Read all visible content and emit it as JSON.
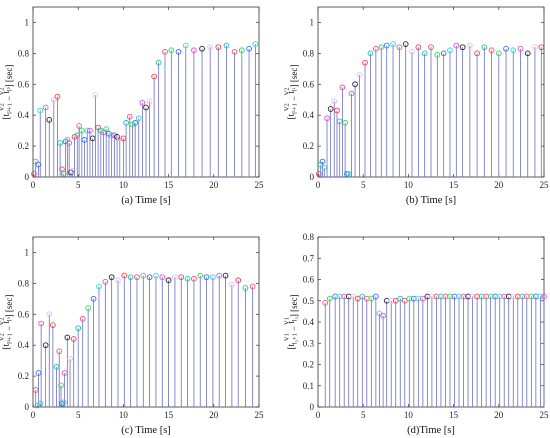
{
  "chart_data": [
    {
      "id": "a",
      "type": "stem",
      "xlabel": "(a) Time [s]",
      "ylabel": {
        "pre": "[",
        "t1": "t",
        "sup1": "V2",
        "sub1": "l²+1",
        "mid": " − ",
        "t2": "t",
        "sup2": "V2",
        "sub2": "l²",
        "post": "] [sec]"
      },
      "xlim": [
        0,
        25
      ],
      "ylim": [
        0,
        1.1
      ],
      "xticks": [
        0,
        5,
        10,
        15,
        20,
        25
      ],
      "yticks": [
        0,
        0.2,
        0.4,
        0.6,
        0.8,
        1
      ],
      "points": [
        [
          0.1,
          0.02
        ],
        [
          0.3,
          0.1
        ],
        [
          0.6,
          0.08
        ],
        [
          0.8,
          0.43
        ],
        [
          1.4,
          0.45
        ],
        [
          1.8,
          0.37
        ],
        [
          2.3,
          0.5
        ],
        [
          2.7,
          0.52
        ],
        [
          3.0,
          0.22
        ],
        [
          3.2,
          0.05
        ],
        [
          3.4,
          0.02
        ],
        [
          3.6,
          0.23
        ],
        [
          3.8,
          0.24
        ],
        [
          4.0,
          0.22
        ],
        [
          4.2,
          0.03
        ],
        [
          4.4,
          0.04
        ],
        [
          4.6,
          0.26
        ],
        [
          4.9,
          0.27
        ],
        [
          5.1,
          0.33
        ],
        [
          5.4,
          0.3
        ],
        [
          5.7,
          0.24
        ],
        [
          6.0,
          0.3
        ],
        [
          6.3,
          0.3
        ],
        [
          6.6,
          0.25
        ],
        [
          6.9,
          0.53
        ],
        [
          7.2,
          0.32
        ],
        [
          7.5,
          0.3
        ],
        [
          7.8,
          0.29
        ],
        [
          8.1,
          0.31
        ],
        [
          8.4,
          0.28
        ],
        [
          8.7,
          0.27
        ],
        [
          9.0,
          0.27
        ],
        [
          9.3,
          0.26
        ],
        [
          9.6,
          0.25
        ],
        [
          10.0,
          0.25
        ],
        [
          10.3,
          0.35
        ],
        [
          10.7,
          0.39
        ],
        [
          11.0,
          0.34
        ],
        [
          11.3,
          0.35
        ],
        [
          11.7,
          0.38
        ],
        [
          12.1,
          0.48
        ],
        [
          12.5,
          0.45
        ],
        [
          12.9,
          0.49
        ],
        [
          13.4,
          0.65
        ],
        [
          13.9,
          0.74
        ],
        [
          14.6,
          0.81
        ],
        [
          15.3,
          0.82
        ],
        [
          16.1,
          0.81
        ],
        [
          16.9,
          0.85
        ],
        [
          17.8,
          0.82
        ],
        [
          18.7,
          0.83
        ],
        [
          19.6,
          0.84
        ],
        [
          20.5,
          0.84
        ],
        [
          21.4,
          0.85
        ],
        [
          22.3,
          0.81
        ],
        [
          23.1,
          0.82
        ],
        [
          23.9,
          0.83
        ],
        [
          24.6,
          0.86
        ]
      ]
    },
    {
      "id": "b",
      "type": "stem",
      "xlabel": "(b) Time [s]",
      "ylabel": {
        "pre": "[",
        "t1": "t",
        "sup1": "V2",
        "sub1": "l¹+1",
        "mid": " − ",
        "t2": "t",
        "sup2": "V2",
        "sub2": "l¹",
        "post": "] [sec]"
      },
      "xlim": [
        0,
        25
      ],
      "ylim": [
        0,
        1.1
      ],
      "xticks": [
        0,
        5,
        10,
        15,
        20,
        25
      ],
      "yticks": [
        0,
        0.2,
        0.4,
        0.6,
        0.8,
        1
      ],
      "points": [
        [
          0.1,
          0.02
        ],
        [
          0.3,
          0.08
        ],
        [
          0.5,
          0.1
        ],
        [
          0.7,
          0.06
        ],
        [
          1.0,
          0.38
        ],
        [
          1.4,
          0.44
        ],
        [
          1.8,
          0.49
        ],
        [
          2.1,
          0.43
        ],
        [
          2.4,
          0.36
        ],
        [
          2.7,
          0.58
        ],
        [
          3.0,
          0.35
        ],
        [
          3.2,
          0.02
        ],
        [
          3.4,
          0.02
        ],
        [
          3.7,
          0.54
        ],
        [
          4.1,
          0.6
        ],
        [
          4.6,
          0.66
        ],
        [
          5.2,
          0.74
        ],
        [
          5.8,
          0.8
        ],
        [
          6.4,
          0.83
        ],
        [
          7.0,
          0.84
        ],
        [
          7.6,
          0.85
        ],
        [
          8.3,
          0.86
        ],
        [
          9.0,
          0.84
        ],
        [
          9.7,
          0.86
        ],
        [
          10.4,
          0.81
        ],
        [
          11.1,
          0.84
        ],
        [
          11.8,
          0.8
        ],
        [
          12.5,
          0.84
        ],
        [
          13.2,
          0.79
        ],
        [
          13.9,
          0.8
        ],
        [
          14.6,
          0.82
        ],
        [
          15.3,
          0.85
        ],
        [
          16.0,
          0.84
        ],
        [
          16.8,
          0.85
        ],
        [
          17.6,
          0.8
        ],
        [
          18.4,
          0.84
        ],
        [
          19.2,
          0.82
        ],
        [
          20.0,
          0.8
        ],
        [
          20.8,
          0.83
        ],
        [
          21.6,
          0.82
        ],
        [
          22.4,
          0.83
        ],
        [
          23.2,
          0.8
        ],
        [
          24.0,
          0.84
        ],
        [
          24.7,
          0.84
        ]
      ]
    },
    {
      "id": "c",
      "type": "stem",
      "xlabel": "(c) Time [s]",
      "ylabel": {
        "pre": "[",
        "t1": "t",
        "sup1": "V2",
        "sub1": "l³+1",
        "mid": " − ",
        "t2": "t",
        "sup2": "V2",
        "sub2": "l³",
        "post": "] [sec]"
      },
      "xlim": [
        0,
        25
      ],
      "ylim": [
        0,
        1.1
      ],
      "xticks": [
        0,
        5,
        10,
        15,
        20,
        25
      ],
      "yticks": [
        0,
        0.2,
        0.4,
        0.6,
        0.8,
        1
      ],
      "points": [
        [
          0.3,
          0.11
        ],
        [
          0.5,
          0.01
        ],
        [
          0.6,
          0.22
        ],
        [
          0.8,
          0.02
        ],
        [
          0.9,
          0.54
        ],
        [
          1.4,
          0.4
        ],
        [
          1.8,
          0.6
        ],
        [
          2.2,
          0.53
        ],
        [
          2.6,
          0.26
        ],
        [
          2.9,
          0.36
        ],
        [
          3.1,
          0.14
        ],
        [
          3.2,
          0.02
        ],
        [
          3.4,
          0.03
        ],
        [
          3.5,
          0.22
        ],
        [
          3.8,
          0.45
        ],
        [
          4.1,
          0.31
        ],
        [
          4.5,
          0.44
        ],
        [
          5.0,
          0.51
        ],
        [
          5.5,
          0.57
        ],
        [
          6.1,
          0.64
        ],
        [
          6.7,
          0.7
        ],
        [
          7.3,
          0.78
        ],
        [
          8.0,
          0.81
        ],
        [
          8.7,
          0.84
        ],
        [
          9.4,
          0.82
        ],
        [
          10.1,
          0.85
        ],
        [
          10.8,
          0.84
        ],
        [
          11.5,
          0.84
        ],
        [
          12.2,
          0.85
        ],
        [
          12.9,
          0.84
        ],
        [
          13.6,
          0.85
        ],
        [
          14.3,
          0.84
        ],
        [
          15.0,
          0.82
        ],
        [
          15.7,
          0.84
        ],
        [
          16.4,
          0.84
        ],
        [
          17.1,
          0.83
        ],
        [
          17.8,
          0.83
        ],
        [
          18.5,
          0.85
        ],
        [
          19.2,
          0.84
        ],
        [
          19.9,
          0.84
        ],
        [
          20.6,
          0.85
        ],
        [
          21.3,
          0.85
        ],
        [
          22.0,
          0.79
        ],
        [
          22.7,
          0.82
        ],
        [
          23.5,
          0.77
        ],
        [
          24.3,
          0.78
        ]
      ]
    },
    {
      "id": "d",
      "type": "stem",
      "xlabel": "(d)Time [s]",
      "ylabel": {
        "pre": "[",
        "t1": "t",
        "sup1": "V1",
        "sub1": "l₂+1",
        "mid": " − ",
        "t2": "t",
        "sup2": "V1",
        "sub2": "l₂",
        "post": "] [sec]"
      },
      "xlim": [
        0,
        25
      ],
      "ylim": [
        0,
        0.8
      ],
      "xticks": [
        0,
        5,
        10,
        15,
        20,
        25
      ],
      "yticks": [
        0,
        0.1,
        0.2,
        0.3,
        0.4,
        0.5,
        0.6,
        0.7,
        0.8
      ],
      "points": [
        [
          0.8,
          0.49
        ],
        [
          1.3,
          0.51
        ],
        [
          1.9,
          0.52
        ],
        [
          2.4,
          0.52
        ],
        [
          2.9,
          0.52
        ],
        [
          3.4,
          0.52
        ],
        [
          3.9,
          0.52
        ],
        [
          4.4,
          0.51
        ],
        [
          4.9,
          0.52
        ],
        [
          5.4,
          0.51
        ],
        [
          5.9,
          0.51
        ],
        [
          6.4,
          0.52
        ],
        [
          6.8,
          0.44
        ],
        [
          7.2,
          0.43
        ],
        [
          7.6,
          0.5
        ],
        [
          8.1,
          0.5
        ],
        [
          8.6,
          0.5
        ],
        [
          9.1,
          0.51
        ],
        [
          9.6,
          0.5
        ],
        [
          10.1,
          0.51
        ],
        [
          10.6,
          0.51
        ],
        [
          11.1,
          0.51
        ],
        [
          11.6,
          0.51
        ],
        [
          12.1,
          0.52
        ],
        [
          12.6,
          0.52
        ],
        [
          13.1,
          0.52
        ],
        [
          13.6,
          0.52
        ],
        [
          14.1,
          0.52
        ],
        [
          14.6,
          0.52
        ],
        [
          15.1,
          0.52
        ],
        [
          15.6,
          0.52
        ],
        [
          16.1,
          0.52
        ],
        [
          16.6,
          0.52
        ],
        [
          17.1,
          0.52
        ],
        [
          17.6,
          0.52
        ],
        [
          18.1,
          0.52
        ],
        [
          18.6,
          0.52
        ],
        [
          19.1,
          0.52
        ],
        [
          19.6,
          0.52
        ],
        [
          20.1,
          0.52
        ],
        [
          20.6,
          0.52
        ],
        [
          21.1,
          0.52
        ],
        [
          21.6,
          0.52
        ],
        [
          22.1,
          0.52
        ],
        [
          22.6,
          0.52
        ],
        [
          23.1,
          0.52
        ],
        [
          23.6,
          0.52
        ],
        [
          24.1,
          0.52
        ],
        [
          24.6,
          0.52
        ],
        [
          25.0,
          0.52
        ]
      ]
    }
  ],
  "style": {
    "stem_color": "#6a6fc4",
    "marker_colors": [
      "#ff4d6d",
      "#34d65a",
      "#2f6bff",
      "#33d6d6",
      "#e34bd8",
      "#222222",
      "#e9b8ff",
      "#ff3b3b",
      "#12c2b8"
    ]
  }
}
